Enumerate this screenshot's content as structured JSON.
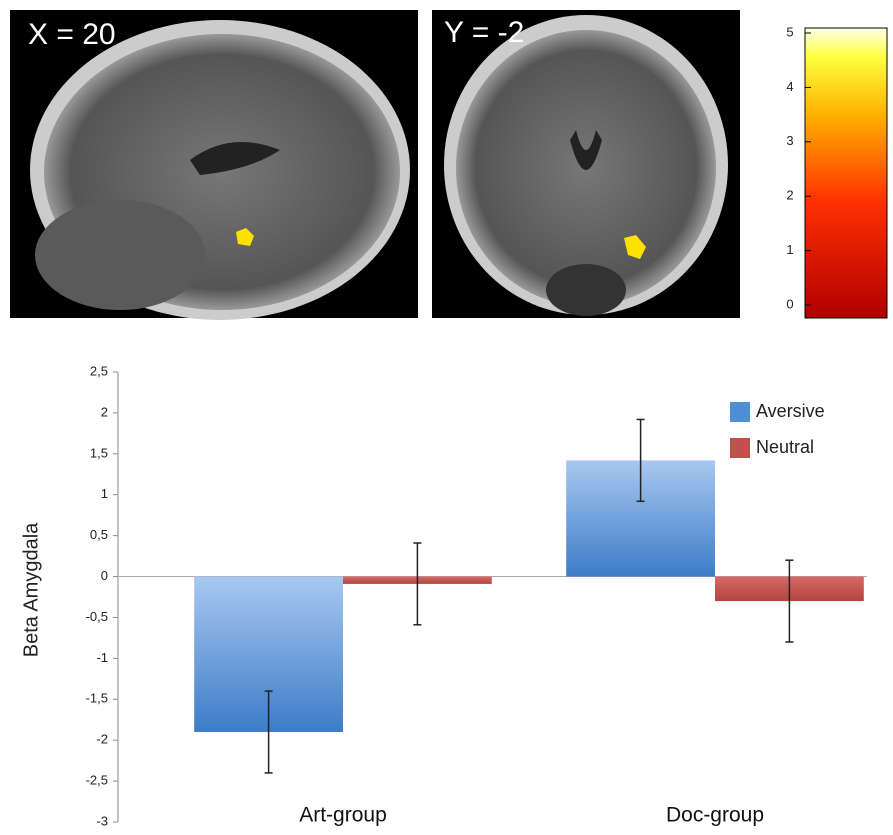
{
  "panels": [
    {
      "label": "X = 20"
    },
    {
      "label": "Y = -2"
    }
  ],
  "colorbar": {
    "ticks": [
      0,
      1,
      2,
      3,
      4,
      5
    ],
    "lim": [
      0,
      5
    ]
  },
  "chart_data": {
    "type": "bar",
    "ylabel": "Beta Amygdala",
    "categories": [
      "Art-group",
      "Doc-group"
    ],
    "series": [
      {
        "name": "Aversive",
        "color": "#4f8fd8",
        "values": [
          -1.9,
          1.42
        ],
        "errors": [
          0.5,
          0.5
        ]
      },
      {
        "name": "Neutral",
        "color": "#c0504d",
        "values": [
          -0.09,
          -0.3
        ],
        "errors": [
          0.5,
          0.5
        ]
      }
    ],
    "ylim": [
      -3,
      2.5
    ],
    "yticks": [
      -3,
      {
        "value": -2.5,
        "label": "-2,5"
      },
      -2,
      {
        "value": -1.5,
        "label": "-1,5"
      },
      -1,
      {
        "value": -0.5,
        "label": "-0,5"
      },
      0,
      {
        "value": 0.5,
        "label": "0,5"
      },
      1,
      {
        "value": 1.5,
        "label": "1,5"
      },
      2,
      {
        "value": 2.5,
        "label": "2,5"
      }
    ],
    "legend": "top-right"
  }
}
